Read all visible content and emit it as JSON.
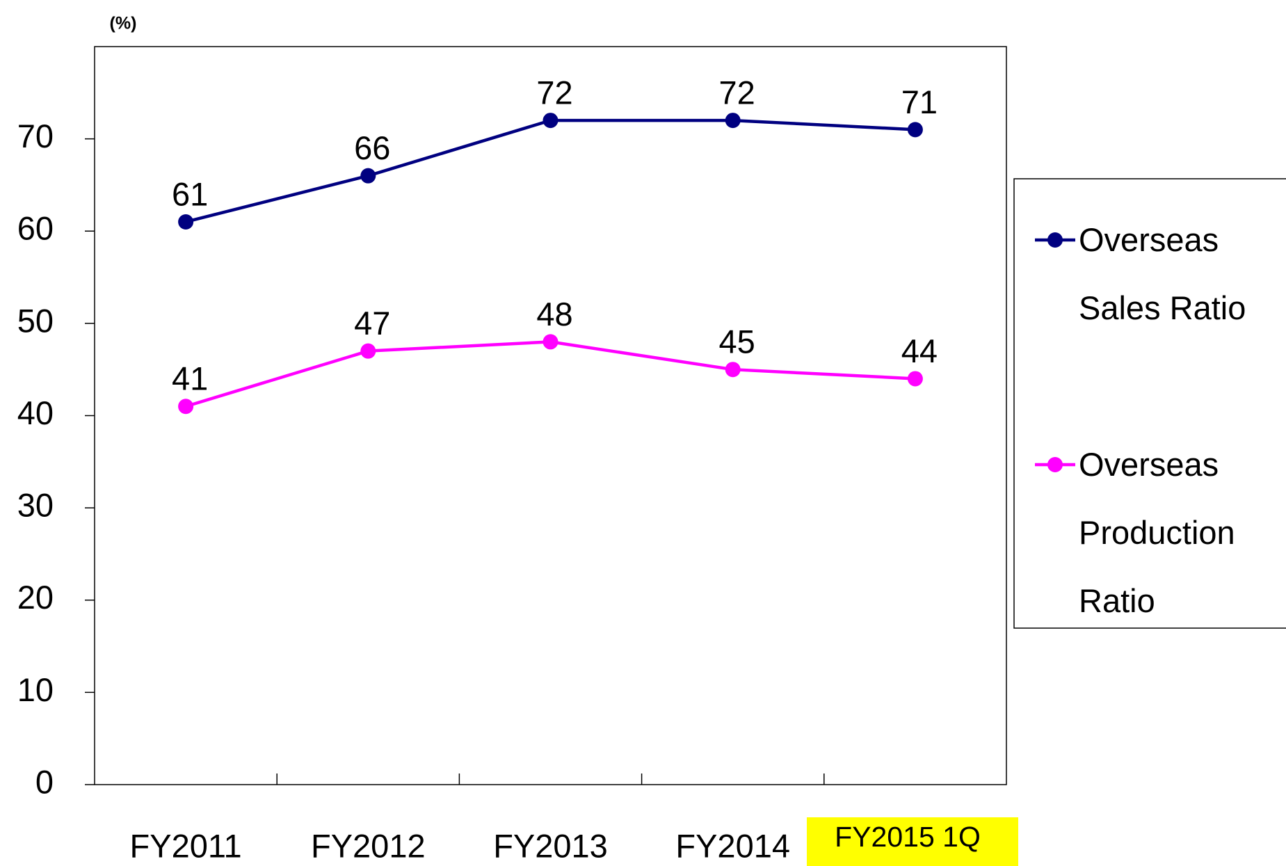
{
  "chart_data": {
    "type": "line",
    "y_label": "(%)",
    "categories": [
      "FY2011",
      "FY2012",
      "FY2013",
      "FY2014",
      "FY2015 1Q"
    ],
    "category_highlight": [
      null,
      null,
      null,
      null,
      "#ffff00"
    ],
    "series": [
      {
        "name": "Overseas Sales Ratio",
        "color": "#000080",
        "values": [
          61,
          66,
          72,
          72,
          71
        ]
      },
      {
        "name": "Overseas Production Ratio",
        "color": "#ff00ff",
        "values": [
          41,
          47,
          48,
          45,
          44
        ]
      }
    ],
    "ylim": [
      0,
      80
    ],
    "yticks": [
      0,
      10,
      20,
      30,
      40,
      50,
      60,
      70
    ],
    "legend": "right"
  }
}
